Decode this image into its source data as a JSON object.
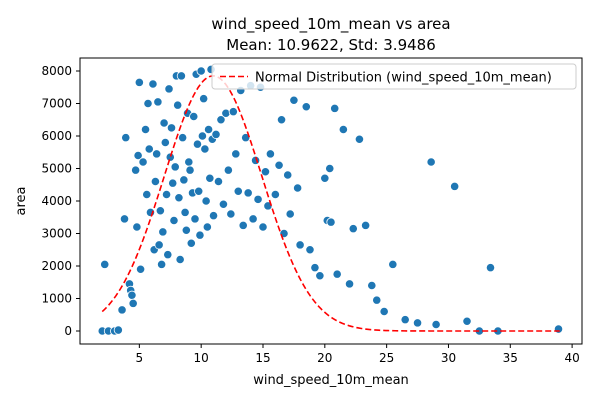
{
  "chart_data": {
    "type": "scatter",
    "title": "wind_speed_10m_mean vs area",
    "subtitle": "Mean: 10.9622, Std: 3.9486",
    "xlabel": "wind_speed_10m_mean",
    "ylabel": "area",
    "xlim": [
      0.2,
      40.8
    ],
    "ylim": [
      -400,
      8400
    ],
    "x_ticks": [
      5,
      10,
      15,
      20,
      25,
      30,
      35,
      40
    ],
    "y_ticks": [
      0,
      1000,
      2000,
      3000,
      4000,
      5000,
      6000,
      7000,
      8000
    ],
    "grid": false,
    "legend_position": "top-right",
    "colors": {
      "scatter": "#1f77b4",
      "normal_curve": "#ff0000"
    },
    "series": [
      {
        "type": "scatter",
        "points": [
          [
            2.2,
            2050
          ],
          [
            2.0,
            0
          ],
          [
            2.5,
            0
          ],
          [
            3.0,
            0
          ],
          [
            3.3,
            30
          ],
          [
            3.6,
            650
          ],
          [
            3.8,
            3450
          ],
          [
            3.9,
            5950
          ],
          [
            4.2,
            1450
          ],
          [
            4.3,
            1250
          ],
          [
            4.4,
            1100
          ],
          [
            4.5,
            850
          ],
          [
            4.7,
            4950
          ],
          [
            4.8,
            3200
          ],
          [
            4.9,
            5400
          ],
          [
            5.0,
            7650
          ],
          [
            5.1,
            1900
          ],
          [
            5.3,
            5200
          ],
          [
            5.5,
            6200
          ],
          [
            5.6,
            4200
          ],
          [
            5.7,
            7000
          ],
          [
            5.8,
            5600
          ],
          [
            5.9,
            3650
          ],
          [
            6.1,
            7600
          ],
          [
            6.2,
            2500
          ],
          [
            6.3,
            4600
          ],
          [
            6.4,
            5450
          ],
          [
            6.5,
            7050
          ],
          [
            6.6,
            2650
          ],
          [
            6.7,
            3700
          ],
          [
            6.8,
            2050
          ],
          [
            6.9,
            3050
          ],
          [
            7.0,
            6400
          ],
          [
            7.1,
            5800
          ],
          [
            7.2,
            4200
          ],
          [
            7.3,
            2350
          ],
          [
            7.4,
            7450
          ],
          [
            7.5,
            5350
          ],
          [
            7.6,
            6250
          ],
          [
            7.7,
            4550
          ],
          [
            7.8,
            3400
          ],
          [
            7.9,
            5050
          ],
          [
            8.0,
            7850
          ],
          [
            8.1,
            6950
          ],
          [
            8.2,
            4100
          ],
          [
            8.3,
            2200
          ],
          [
            8.4,
            7850
          ],
          [
            8.5,
            5950
          ],
          [
            8.6,
            4650
          ],
          [
            8.7,
            3650
          ],
          [
            8.8,
            3100
          ],
          [
            8.9,
            6700
          ],
          [
            9.0,
            5200
          ],
          [
            9.1,
            4950
          ],
          [
            9.2,
            2700
          ],
          [
            9.3,
            4250
          ],
          [
            9.4,
            6600
          ],
          [
            9.5,
            3450
          ],
          [
            9.6,
            7900
          ],
          [
            9.7,
            5750
          ],
          [
            9.8,
            4300
          ],
          [
            9.9,
            2950
          ],
          [
            10.0,
            8000
          ],
          [
            10.1,
            6000
          ],
          [
            10.2,
            7150
          ],
          [
            10.3,
            5600
          ],
          [
            10.4,
            4000
          ],
          [
            10.5,
            3200
          ],
          [
            10.6,
            6200
          ],
          [
            10.7,
            4700
          ],
          [
            10.8,
            8050
          ],
          [
            10.9,
            5900
          ],
          [
            11.0,
            3550
          ],
          [
            11.2,
            6050
          ],
          [
            11.4,
            4600
          ],
          [
            11.6,
            6500
          ],
          [
            11.8,
            3900
          ],
          [
            12.0,
            6700
          ],
          [
            12.2,
            4950
          ],
          [
            12.4,
            3600
          ],
          [
            12.6,
            6750
          ],
          [
            12.8,
            5450
          ],
          [
            13.0,
            4300
          ],
          [
            13.2,
            7400
          ],
          [
            13.4,
            3250
          ],
          [
            13.6,
            5950
          ],
          [
            13.8,
            4250
          ],
          [
            14.0,
            7550
          ],
          [
            14.2,
            3450
          ],
          [
            14.4,
            5250
          ],
          [
            14.6,
            4050
          ],
          [
            14.8,
            7500
          ],
          [
            15.0,
            3200
          ],
          [
            15.2,
            4900
          ],
          [
            15.4,
            3850
          ],
          [
            15.6,
            5450
          ],
          [
            16.0,
            4200
          ],
          [
            16.3,
            5100
          ],
          [
            16.5,
            6500
          ],
          [
            16.7,
            3000
          ],
          [
            17.0,
            4800
          ],
          [
            17.2,
            3600
          ],
          [
            17.5,
            7100
          ],
          [
            17.8,
            4400
          ],
          [
            18.0,
            2650
          ],
          [
            18.5,
            6900
          ],
          [
            18.8,
            2500
          ],
          [
            19.2,
            1950
          ],
          [
            19.6,
            1700
          ],
          [
            20.0,
            4700
          ],
          [
            20.2,
            3400
          ],
          [
            20.4,
            5000
          ],
          [
            20.5,
            3350
          ],
          [
            20.8,
            6850
          ],
          [
            21.0,
            1750
          ],
          [
            21.5,
            6200
          ],
          [
            22.0,
            1450
          ],
          [
            22.3,
            3150
          ],
          [
            22.8,
            5900
          ],
          [
            23.3,
            3250
          ],
          [
            23.8,
            1400
          ],
          [
            24.2,
            950
          ],
          [
            24.8,
            600
          ],
          [
            25.5,
            2050
          ],
          [
            26.5,
            350
          ],
          [
            27.5,
            250
          ],
          [
            28.6,
            5200
          ],
          [
            29.0,
            200
          ],
          [
            30.5,
            4450
          ],
          [
            31.5,
            300
          ],
          [
            32.5,
            0
          ],
          [
            33.4,
            1950
          ],
          [
            34.0,
            0
          ],
          [
            38.9,
            60
          ]
        ]
      },
      {
        "type": "line",
        "name": "Normal Distribution (wind_speed_10m_mean)",
        "mean": 10.9622,
        "std": 3.9486,
        "x_range": [
          2.0,
          39.0
        ],
        "peak": 7850,
        "style": "dashed"
      }
    ]
  }
}
